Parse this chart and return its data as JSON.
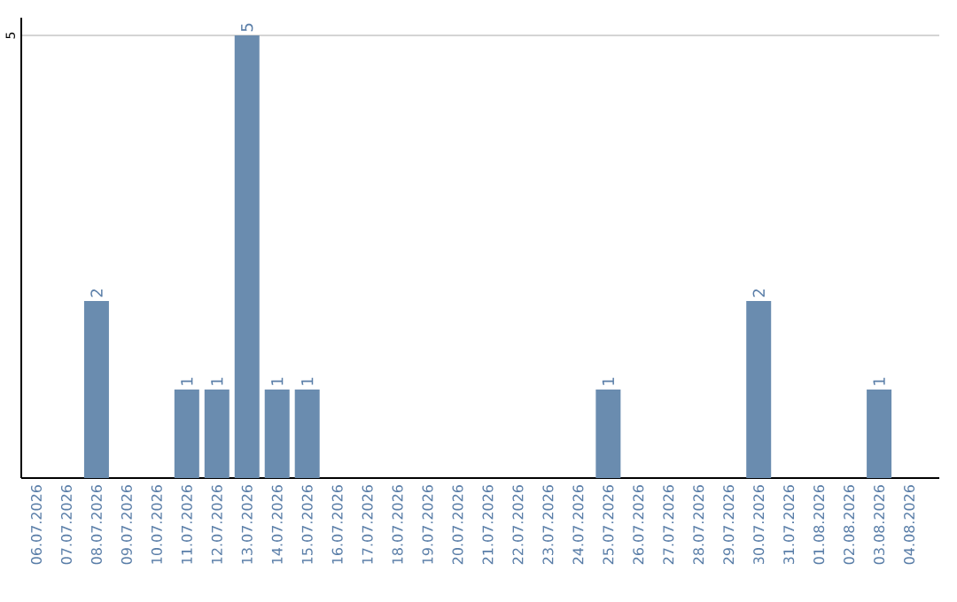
{
  "chart_data": {
    "type": "bar",
    "categories": [
      "06.07.2026",
      "07.07.2026",
      "08.07.2026",
      "09.07.2026",
      "10.07.2026",
      "11.07.2026",
      "12.07.2026",
      "13.07.2026",
      "14.07.2026",
      "15.07.2026",
      "16.07.2026",
      "17.07.2026",
      "18.07.2026",
      "19.07.2026",
      "20.07.2026",
      "21.07.2026",
      "22.07.2026",
      "23.07.2026",
      "24.07.2026",
      "25.07.2026",
      "26.07.2026",
      "27.07.2026",
      "28.07.2026",
      "29.07.2026",
      "30.07.2026",
      "31.07.2026",
      "01.08.2026",
      "02.08.2026",
      "03.08.2026",
      "04.08.2026"
    ],
    "values": [
      null,
      null,
      2,
      null,
      null,
      1,
      1,
      5,
      1,
      1,
      null,
      null,
      null,
      null,
      null,
      null,
      null,
      null,
      null,
      1,
      null,
      null,
      null,
      null,
      2,
      null,
      null,
      null,
      1,
      null
    ],
    "color": "#6a8caf",
    "ylim": [
      0,
      5.2
    ],
    "yticks": [
      5
    ],
    "grid": "y",
    "data_labels": true
  }
}
